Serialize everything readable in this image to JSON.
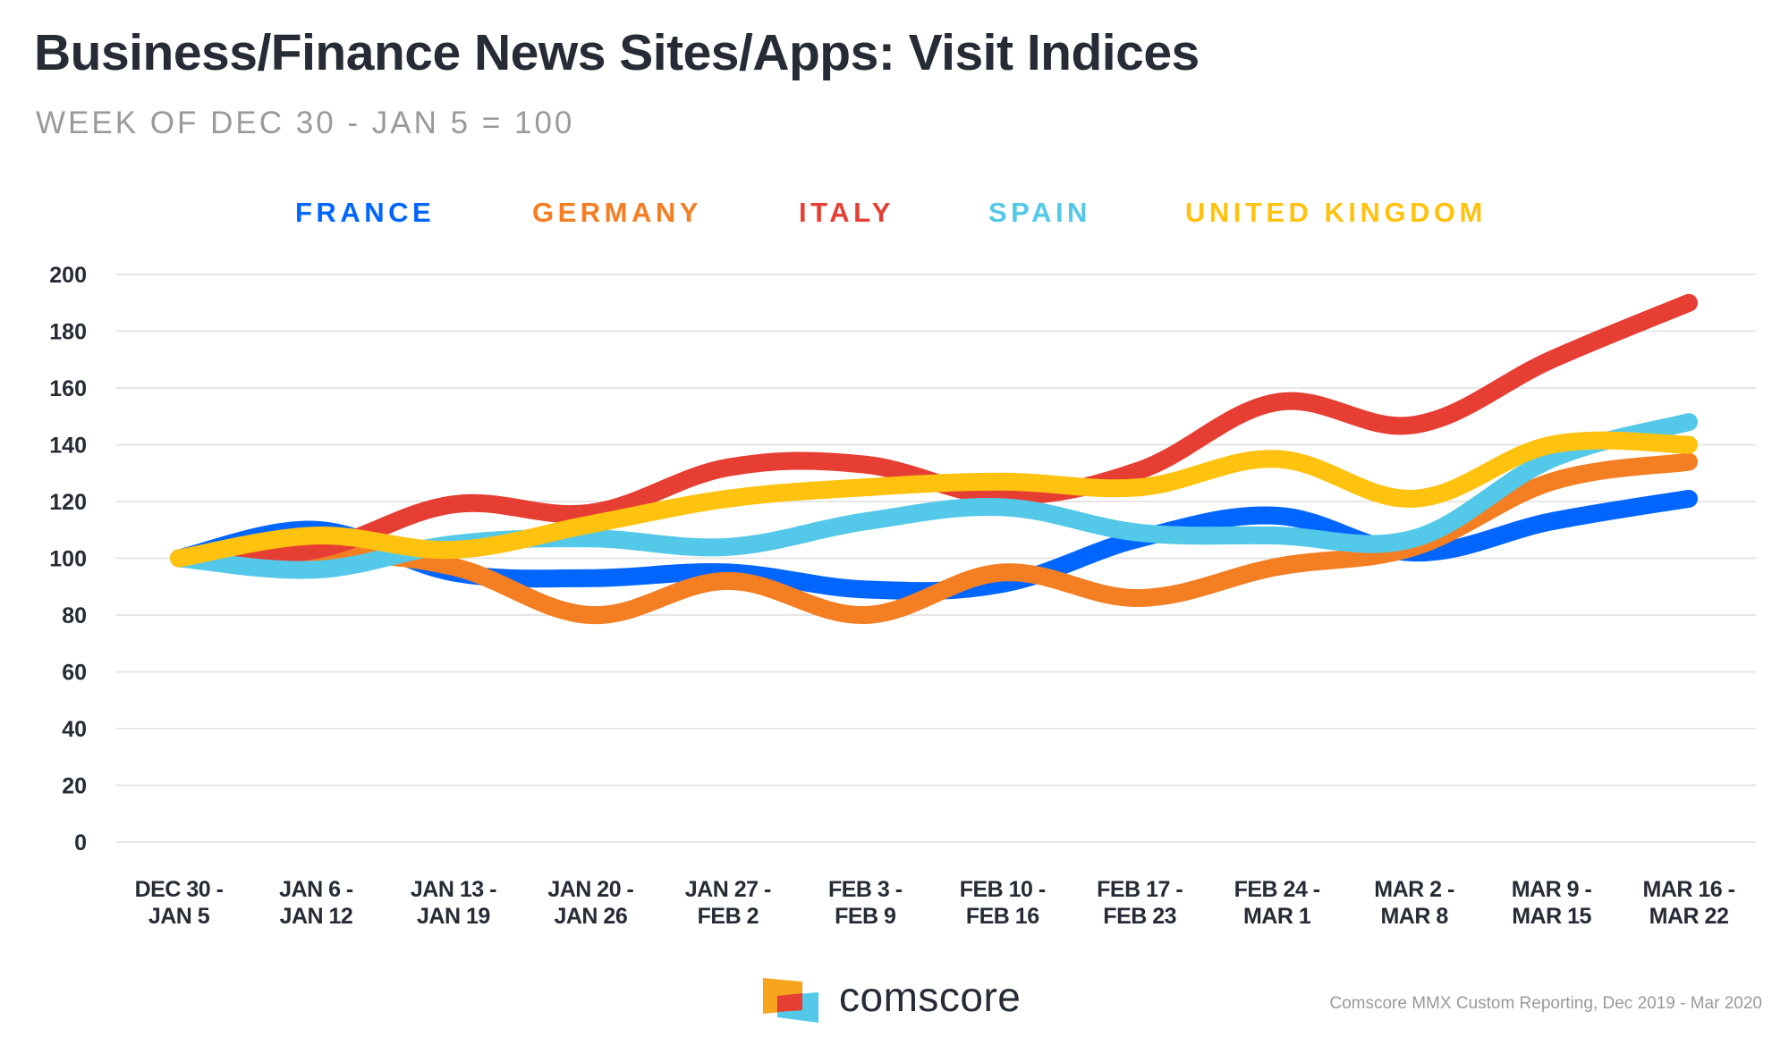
{
  "header": {
    "title": "Business/Finance News Sites/Apps: Visit Indices",
    "subtitle": "WEEK OF DEC 30 - JAN 5 = 100"
  },
  "footer": {
    "brand": "comscore",
    "logo_icon": "comscore-logo-icon",
    "logo_colors": [
      "#f8a51e",
      "#e63e33",
      "#53c8e8"
    ],
    "source": "Comscore MMX Custom Reporting, Dec 2019 - Mar 2020"
  },
  "chart_data": {
    "type": "line",
    "title": "Business/Finance News Sites/Apps: Visit Indices",
    "subtitle": "WEEK OF DEC 30 - JAN 5 = 100",
    "xlabel": "",
    "ylabel": "",
    "ylim": [
      0,
      200
    ],
    "yticks": [
      0,
      20,
      40,
      60,
      80,
      100,
      120,
      140,
      160,
      180,
      200
    ],
    "grid": true,
    "legend_position": "top-center",
    "categories": [
      [
        "DEC 30 -",
        "JAN 5"
      ],
      [
        "JAN 6 -",
        "JAN 12"
      ],
      [
        "JAN 13 -",
        "JAN 19"
      ],
      [
        "JAN 20 -",
        "JAN 26"
      ],
      [
        "JAN 27 -",
        "FEB 2"
      ],
      [
        "FEB 3 -",
        "FEB 9"
      ],
      [
        "FEB 10 -",
        "FEB 16"
      ],
      [
        "FEB 17 -",
        "FEB 23"
      ],
      [
        "FEB 24 -",
        "MAR 1"
      ],
      [
        "MAR 2 -",
        "MAR 8"
      ],
      [
        "MAR 9 -",
        "MAR 15"
      ],
      [
        "MAR 16 -",
        "MAR 22"
      ]
    ],
    "series": [
      {
        "name": "FRANCE",
        "color": "#0066ff",
        "values": [
          100,
          110,
          95,
          93,
          95,
          89,
          91,
          107,
          115,
          102,
          113,
          121
        ]
      },
      {
        "name": "GERMANY",
        "color": "#f47e22",
        "values": [
          100,
          102,
          97,
          80,
          92,
          80,
          95,
          86,
          97,
          104,
          127,
          134
        ]
      },
      {
        "name": "ITALY",
        "color": "#e63e33",
        "values": [
          100,
          103,
          119,
          116,
          132,
          133,
          122,
          131,
          155,
          147,
          170,
          190
        ]
      },
      {
        "name": "SPAIN",
        "color": "#53c8e8",
        "values": [
          100,
          96,
          105,
          107,
          104,
          113,
          118,
          109,
          108,
          107,
          135,
          148
        ]
      },
      {
        "name": "UNITED KINGDOM",
        "color": "#ffc20e",
        "values": [
          100,
          108,
          103,
          112,
          121,
          125,
          127,
          125,
          135,
          121,
          140,
          140
        ]
      }
    ]
  }
}
